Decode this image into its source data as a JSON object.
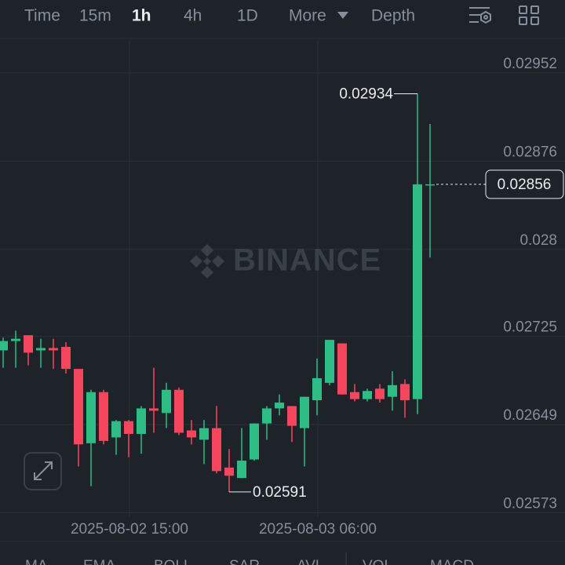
{
  "toolbar": {
    "intervals": [
      "Time",
      "15m",
      "1h",
      "4h",
      "1D"
    ],
    "more": "More",
    "depth": "Depth"
  },
  "watermark": "BINANCE",
  "indicators": [
    "MA",
    "EMA",
    "BOLL",
    "SAR",
    "AVL",
    "VOL",
    "MACD"
  ],
  "chart_data": {
    "type": "candlestick",
    "categories": [
      null,
      null,
      null,
      null,
      null,
      null,
      null,
      null,
      null,
      null,
      "2025-08-02 15:00",
      null,
      null,
      null,
      null,
      null,
      null,
      null,
      null,
      null,
      null,
      null,
      null,
      null,
      null,
      "2025-08-03 06:00",
      null,
      null,
      null,
      null,
      null,
      null,
      null,
      null,
      null
    ],
    "open": [
      0.02713,
      0.02721,
      0.02726,
      0.02713,
      0.02715,
      0.02716,
      0.02697,
      0.02633,
      0.02677,
      0.02638,
      0.02652,
      0.02641,
      0.02663,
      0.02659,
      0.02679,
      0.02644,
      0.02636,
      0.02646,
      0.02612,
      0.02603,
      0.02619,
      0.0265,
      0.02663,
      0.02665,
      0.02646,
      0.0267,
      0.02685,
      0.02719,
      0.02677,
      0.02671,
      0.0268,
      0.02673,
      0.02684,
      0.02671,
      0.02855
    ],
    "high": [
      0.02724,
      0.0273,
      0.02726,
      0.02723,
      0.02723,
      0.0272,
      0.02697,
      0.02679,
      0.02679,
      0.02653,
      0.02653,
      0.02665,
      0.02698,
      0.02685,
      0.02681,
      0.02653,
      0.02653,
      0.02665,
      0.02628,
      0.02646,
      0.0265,
      0.02665,
      0.02675,
      0.02665,
      0.02673,
      0.02706,
      0.02722,
      0.02719,
      0.02684,
      0.0268,
      0.02684,
      0.02695,
      0.02688,
      0.02934,
      0.02908
    ],
    "low": [
      0.02698,
      0.02698,
      0.027,
      0.02698,
      0.02697,
      0.02693,
      0.02613,
      0.02596,
      0.02632,
      0.02623,
      0.02621,
      0.02624,
      0.02642,
      0.02646,
      0.0264,
      0.02632,
      0.02615,
      0.02607,
      0.02591,
      0.02603,
      0.02618,
      0.02636,
      0.02657,
      0.02634,
      0.02613,
      0.02657,
      0.02683,
      0.02675,
      0.02669,
      0.02669,
      0.02668,
      0.02661,
      0.02655,
      0.02658,
      0.02793
    ],
    "close": [
      0.02721,
      0.02723,
      0.02711,
      0.02715,
      0.02713,
      0.02697,
      0.02632,
      0.02677,
      0.02635,
      0.02652,
      0.02641,
      0.02663,
      0.02661,
      0.02679,
      0.02642,
      0.02638,
      0.02646,
      0.02609,
      0.02605,
      0.02618,
      0.0265,
      0.02663,
      0.02668,
      0.02648,
      0.02673,
      0.02689,
      0.02722,
      0.02675,
      0.02671,
      0.02678,
      0.02671,
      0.02683,
      0.0267,
      0.02856,
      0.02856
    ],
    "up_color": "#2ebd85",
    "down_color": "#f6465d",
    "ylim": [
      0.0257,
      0.02981
    ],
    "yticks": [
      0.02952,
      0.02876,
      0.028,
      0.02725,
      0.02649,
      0.02573
    ],
    "grid": true
  }
}
